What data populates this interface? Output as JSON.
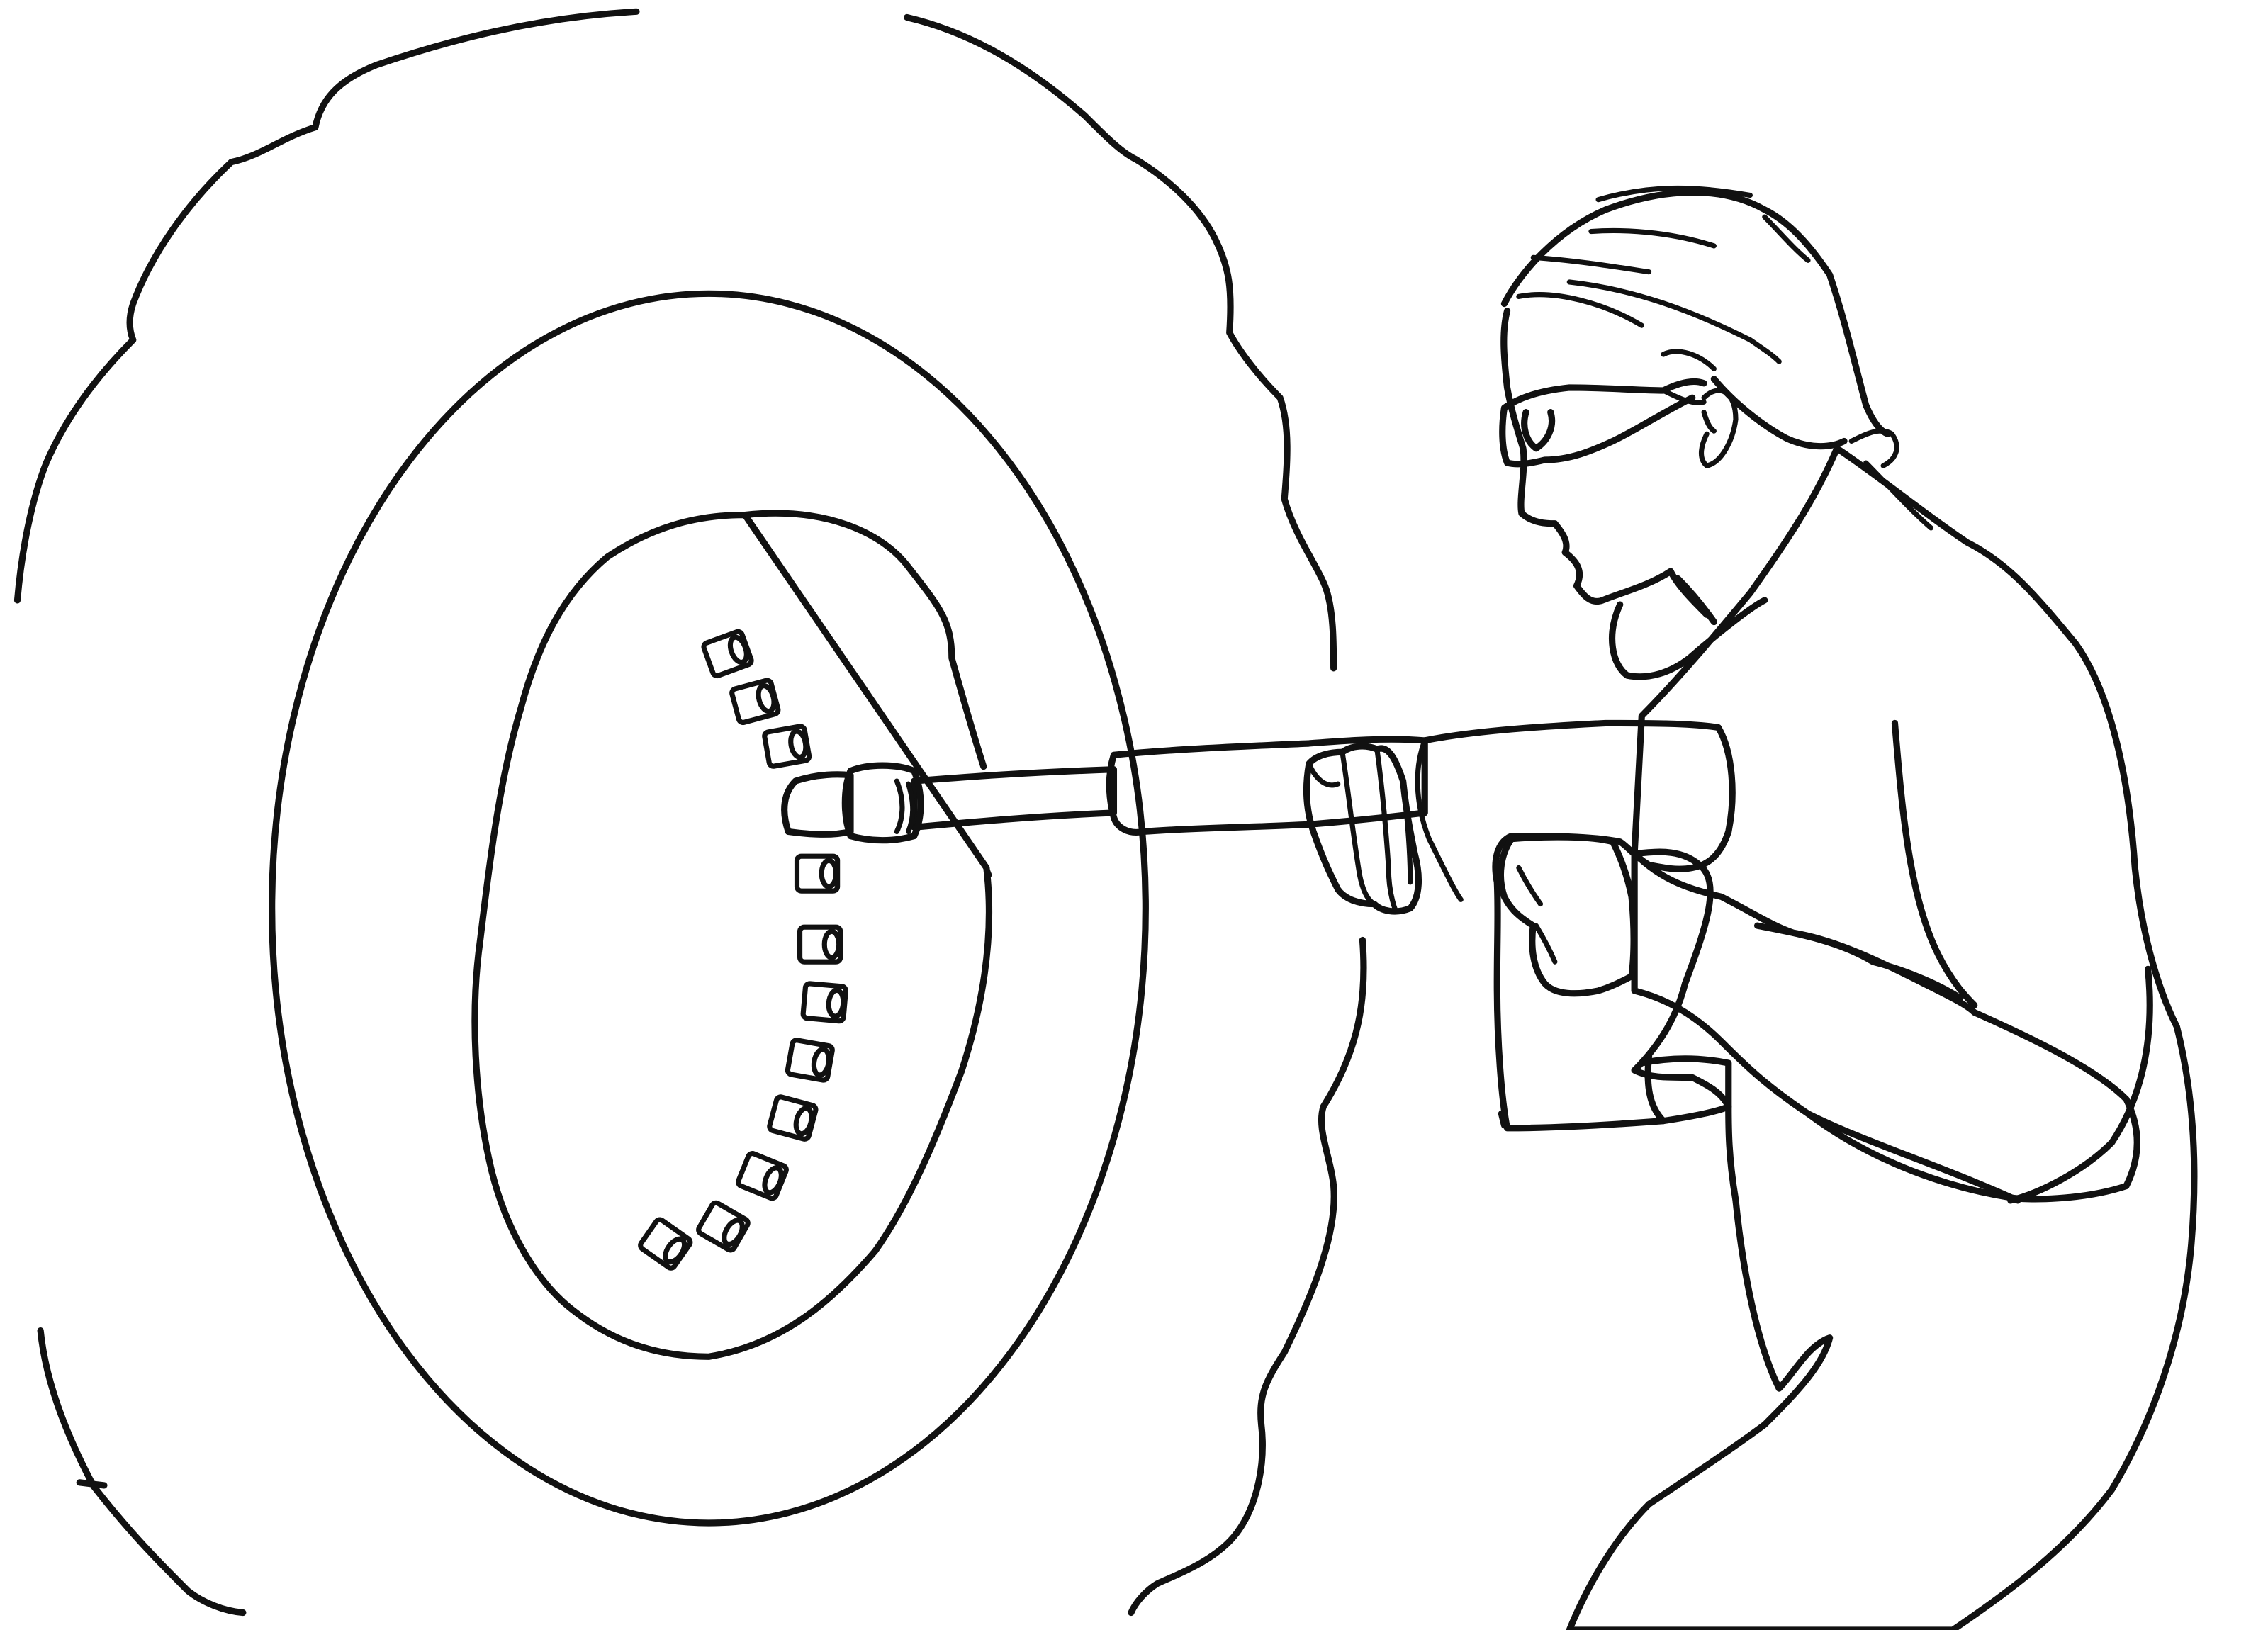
{
  "scene": {
    "kind": "line-drawing",
    "background_color": "#ffffff",
    "ink_color": "#111111",
    "coat_color": "#b3b0a5",
    "tool_color": "#dcd9ce"
  },
  "icons": {
    "worker": "person-with-goggles-icon",
    "tool": "impact-wrench-icon",
    "tire": "tire-icon",
    "lug_nuts": "lug-nut-icon"
  },
  "lug_nut_count": 12
}
